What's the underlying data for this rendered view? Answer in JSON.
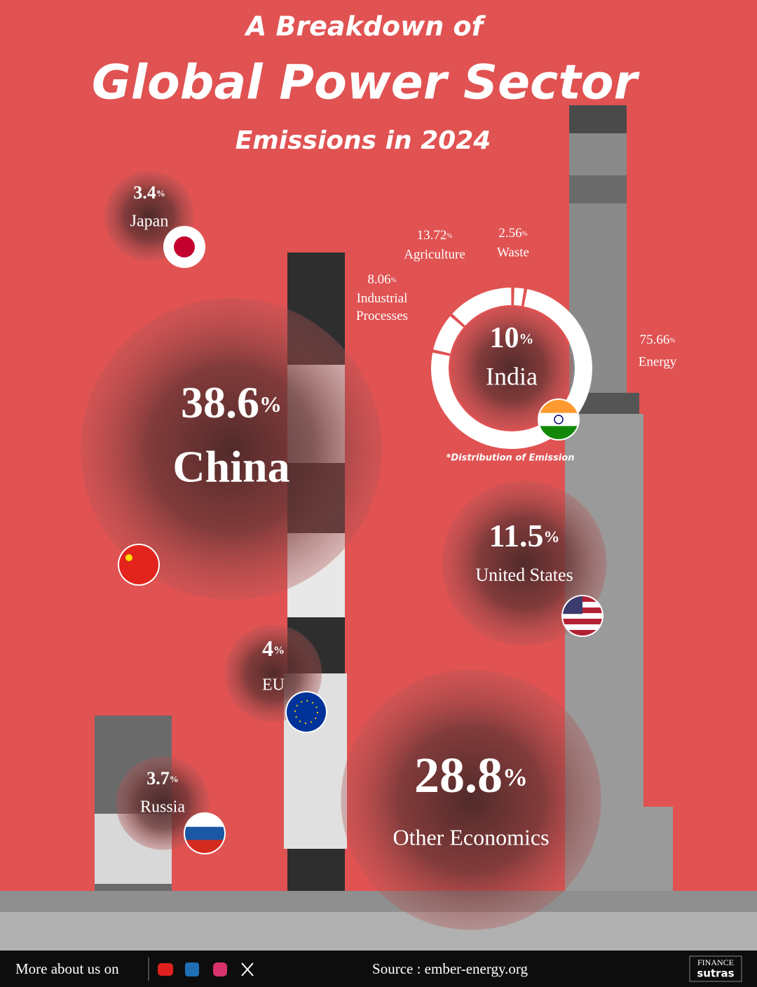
{
  "header": {
    "line1": "A Breakdown of",
    "line2": "Global Power Sector",
    "line3": "Emissions in 2024"
  },
  "chart_data": [
    {
      "type": "bubble",
      "categories": [
        "Japan",
        "China",
        "India",
        "United States",
        "EU",
        "Other Economics",
        "Russia"
      ],
      "values": [
        3.4,
        38.6,
        10,
        11.5,
        4,
        28.8,
        3.7
      ],
      "value_labels": [
        "3.4%",
        "38.6%",
        "10%",
        "11.5%",
        "4%",
        "28.8%",
        "3.7%"
      ]
    },
    {
      "type": "pie",
      "title": "India",
      "note": "*Distribution of Emission",
      "categories": [
        "Energy",
        "Industrial Processes",
        "Agriculture",
        "Waste"
      ],
      "values": [
        75.66,
        8.06,
        13.72,
        2.56
      ],
      "value_labels": [
        "75.66%",
        "8.06%",
        "13.72%",
        "2.56%"
      ],
      "color": "#ffffff"
    }
  ],
  "footer": {
    "follow": "More about us on",
    "source": "Source : ember-energy.org",
    "logo_top": "FINANCE",
    "logo_bottom": "sutras"
  }
}
